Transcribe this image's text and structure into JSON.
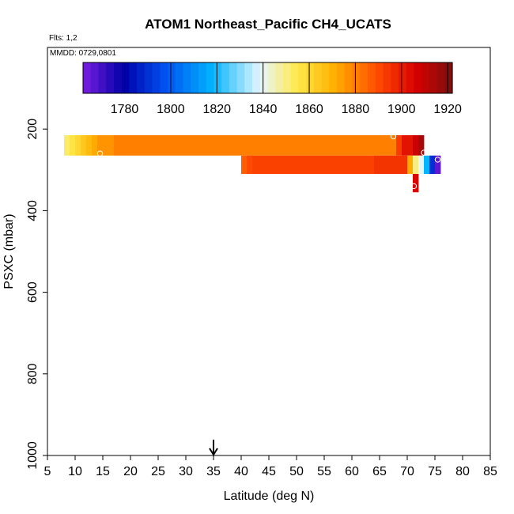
{
  "chart_data": {
    "type": "heatmap",
    "title": "ATOM1 Northeast_Pacific CH4_UCATS",
    "flights_note": "Flts: 1,2",
    "date_note": "MMDD: 0729,0801",
    "xlabel": "Latitude (deg N)",
    "ylabel": "PSXC (mbar)",
    "xlim": [
      5,
      85
    ],
    "ylim": [
      1000,
      0
    ],
    "y_reversed": true,
    "grid": false,
    "x_ticks": [
      "5",
      "10",
      "15",
      "20",
      "25",
      "30",
      "35",
      "40",
      "45",
      "50",
      "55",
      "60",
      "65",
      "70",
      "75",
      "80",
      "85"
    ],
    "y_ticks": [
      "200",
      "400",
      "600",
      "800",
      "1000"
    ],
    "colorbar": {
      "placement": "top",
      "range": [
        1762,
        1922
      ],
      "tick_labels": [
        "1780",
        "1800",
        "1820",
        "1840",
        "1860",
        "1880",
        "1900",
        "1920"
      ],
      "stops": [
        [
          "#7a1fe0",
          0.0
        ],
        [
          "#0000a8",
          0.11
        ],
        [
          "#0050f0",
          0.22
        ],
        [
          "#00b4ff",
          0.35
        ],
        [
          "#e6f6ff",
          0.48
        ],
        [
          "#ffe94a",
          0.58
        ],
        [
          "#ffb000",
          0.68
        ],
        [
          "#ff4a00",
          0.8
        ],
        [
          "#d80000",
          0.9
        ],
        [
          "#7a1010",
          1.0
        ]
      ]
    },
    "cells": [
      {
        "lat0": 8.0,
        "lat1": 9.0,
        "p0": 215,
        "p1": 265,
        "value": 1852
      },
      {
        "lat0": 9.0,
        "lat1": 10.0,
        "p0": 215,
        "p1": 265,
        "value": 1856
      },
      {
        "lat0": 10.0,
        "lat1": 11.0,
        "p0": 215,
        "p1": 265,
        "value": 1860
      },
      {
        "lat0": 11.0,
        "lat1": 12.0,
        "p0": 215,
        "p1": 265,
        "value": 1864
      },
      {
        "lat0": 12.0,
        "lat1": 13.0,
        "p0": 215,
        "p1": 265,
        "value": 1868
      },
      {
        "lat0": 13.0,
        "lat1": 14.0,
        "p0": 215,
        "p1": 265,
        "value": 1872
      },
      {
        "lat0": 14.0,
        "lat1": 17.0,
        "p0": 215,
        "p1": 265,
        "value": 1876
      },
      {
        "lat0": 17.0,
        "lat1": 68.0,
        "p0": 215,
        "p1": 265,
        "value": 1880
      },
      {
        "lat0": 68.0,
        "lat1": 69.0,
        "p0": 215,
        "p1": 265,
        "value": 1893
      },
      {
        "lat0": 69.0,
        "lat1": 71.0,
        "p0": 215,
        "p1": 265,
        "value": 1902
      },
      {
        "lat0": 71.0,
        "lat1": 72.0,
        "p0": 215,
        "p1": 265,
        "value": 1908
      },
      {
        "lat0": 72.0,
        "lat1": 73.0,
        "p0": 215,
        "p1": 265,
        "value": 1914
      },
      {
        "lat0": 40.0,
        "lat1": 41.0,
        "p0": 265,
        "p1": 310,
        "value": 1886
      },
      {
        "lat0": 41.0,
        "lat1": 42.0,
        "p0": 265,
        "p1": 310,
        "value": 1890
      },
      {
        "lat0": 42.0,
        "lat1": 64.0,
        "p0": 265,
        "p1": 310,
        "value": 1892
      },
      {
        "lat0": 64.0,
        "lat1": 70.0,
        "p0": 265,
        "p1": 310,
        "value": 1895
      },
      {
        "lat0": 70.0,
        "lat1": 71.0,
        "p0": 265,
        "p1": 310,
        "value": 1872
      },
      {
        "lat0": 71.0,
        "lat1": 72.0,
        "p0": 265,
        "p1": 310,
        "value": 1850
      },
      {
        "lat0": 72.0,
        "lat1": 73.0,
        "p0": 265,
        "p1": 310,
        "value": 1840
      },
      {
        "lat0": 73.0,
        "lat1": 74.0,
        "p0": 265,
        "p1": 310,
        "value": 1818
      },
      {
        "lat0": 74.0,
        "lat1": 75.0,
        "p0": 265,
        "p1": 310,
        "value": 1790
      },
      {
        "lat0": 75.0,
        "lat1": 76.0,
        "p0": 265,
        "p1": 310,
        "value": 1766
      },
      {
        "lat0": 71.0,
        "lat1": 72.0,
        "p0": 310,
        "p1": 355,
        "value": 1905
      }
    ],
    "points": [
      {
        "lat": 14.5,
        "p": 260
      },
      {
        "lat": 67.5,
        "p": 218
      },
      {
        "lat": 73.0,
        "p": 258
      },
      {
        "lat": 75.5,
        "p": 275
      },
      {
        "lat": 71.2,
        "p": 340
      }
    ],
    "marker": {
      "lat": 35.0,
      "symbol": "arrow-down"
    }
  }
}
